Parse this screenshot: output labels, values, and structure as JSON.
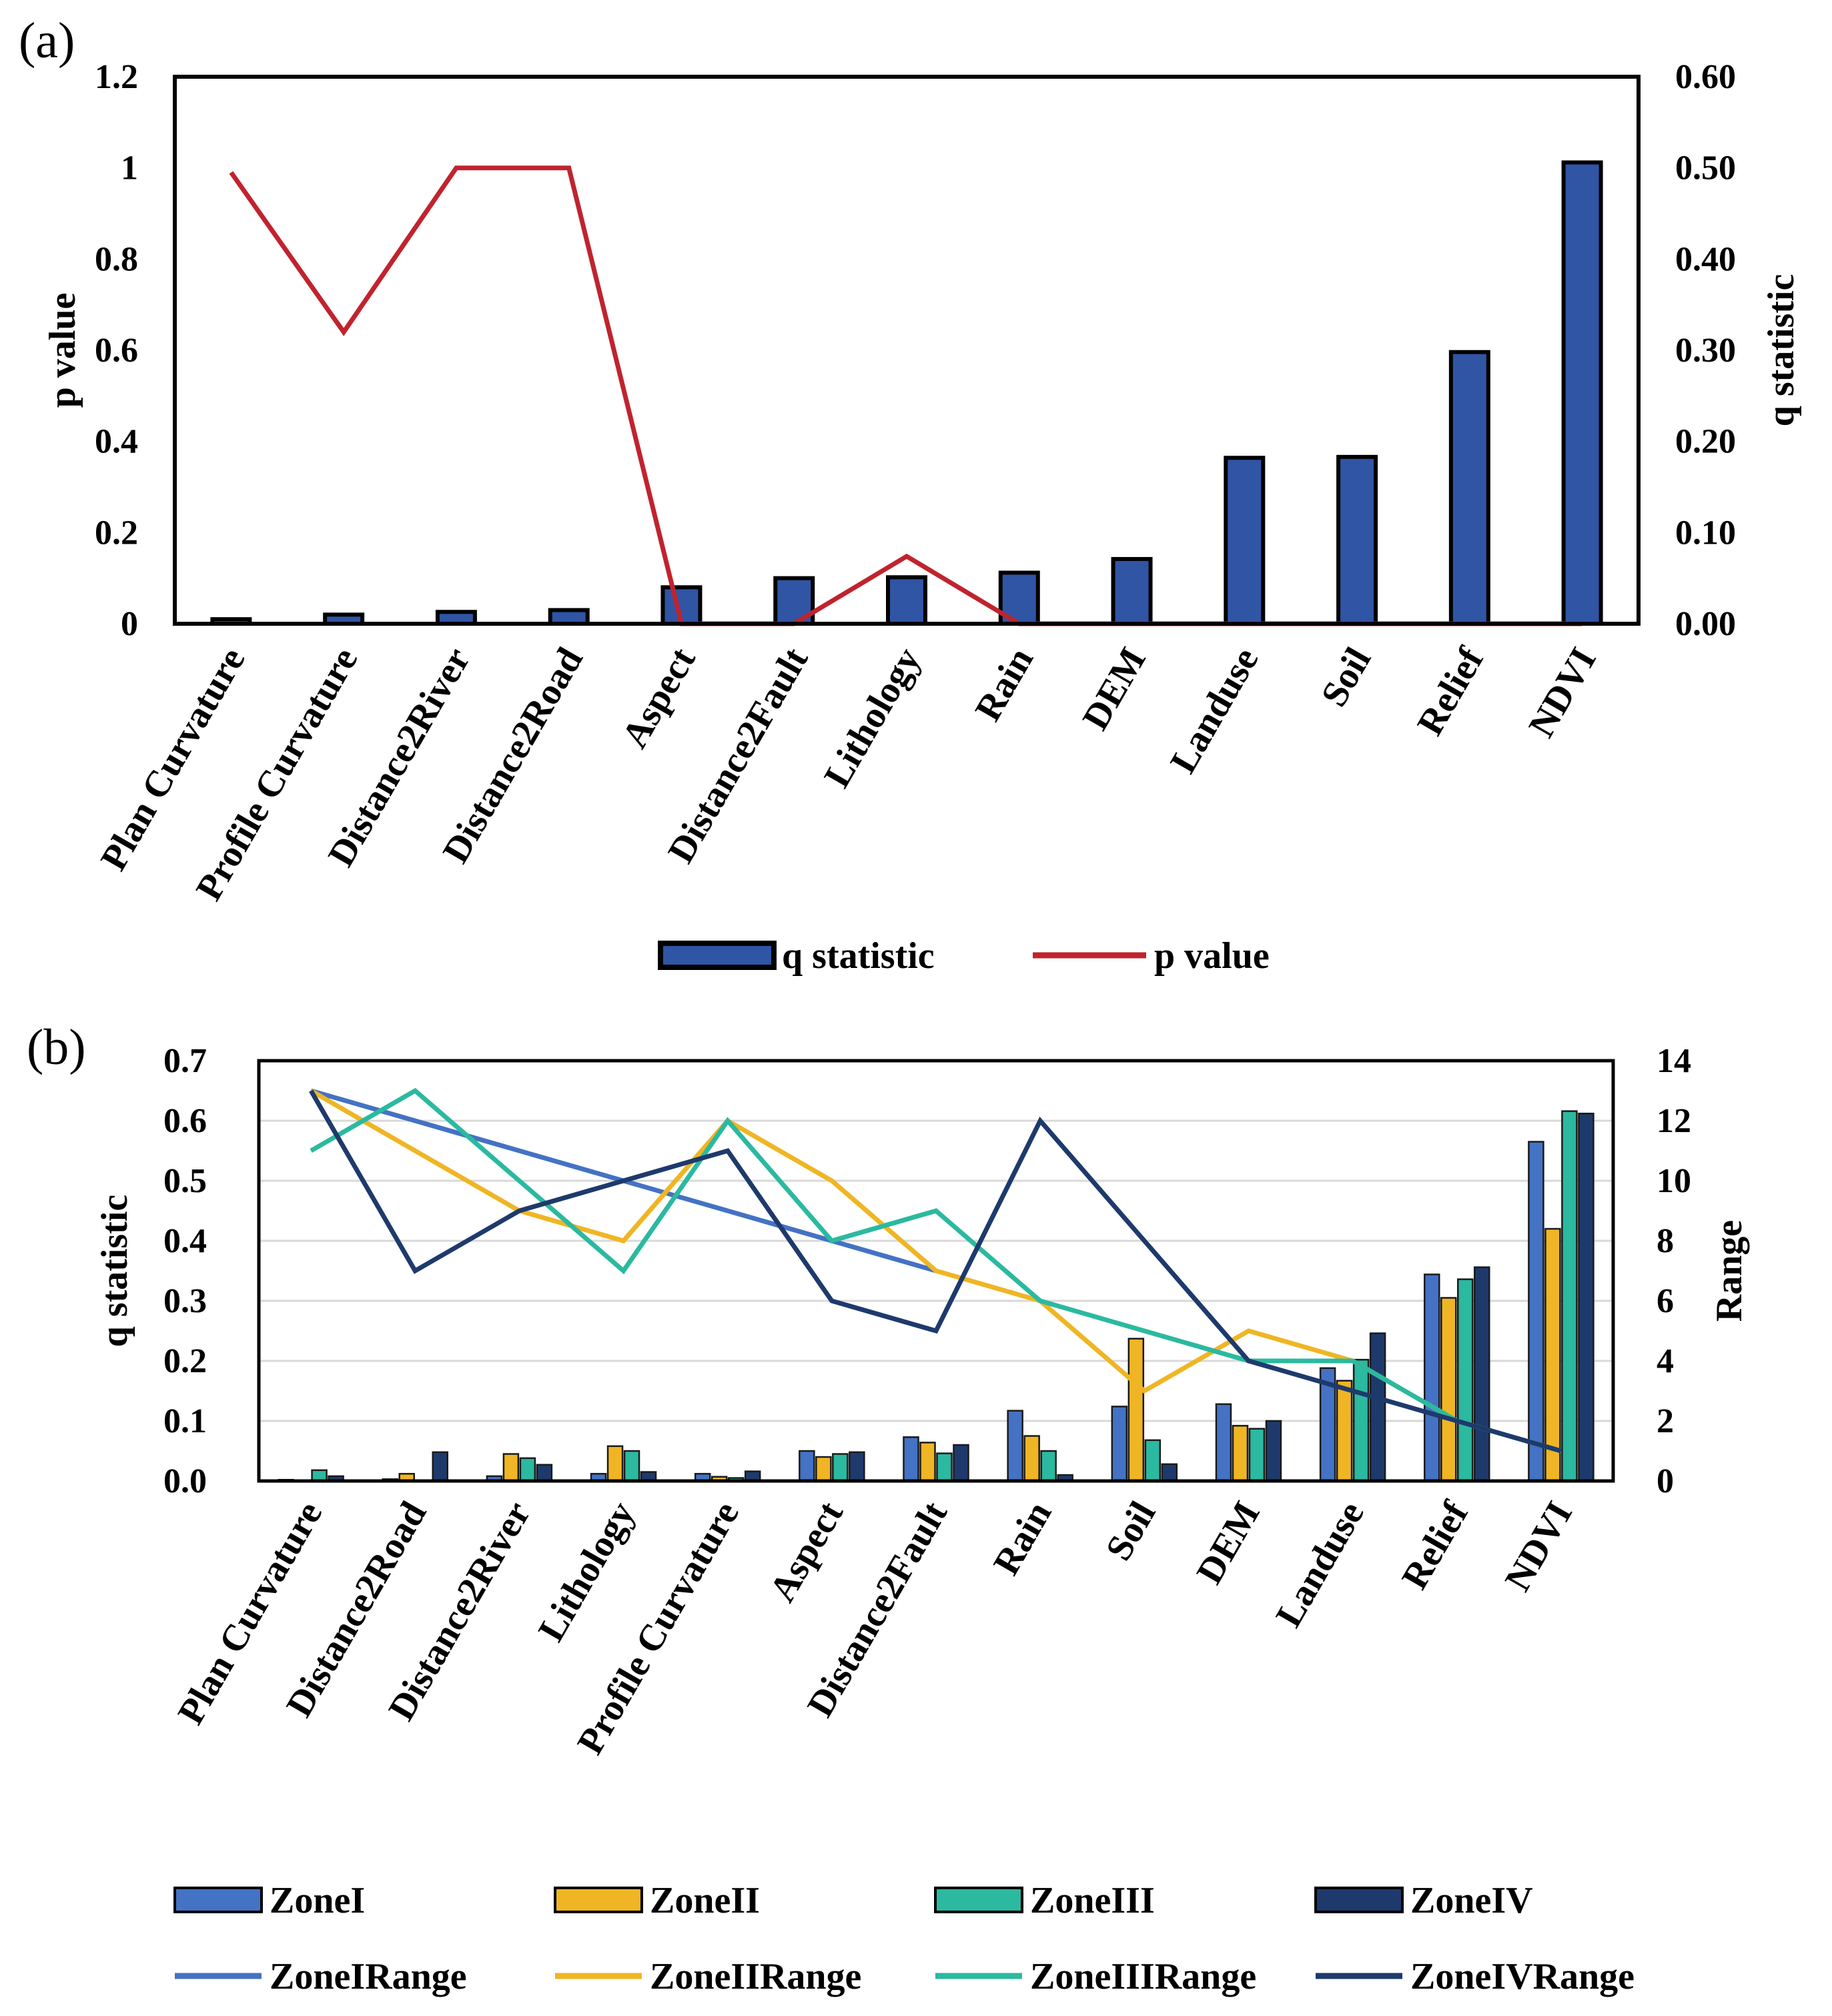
{
  "chart_data": [
    {
      "panel": "(a)",
      "type": "bar",
      "categories": [
        "Plan Curvature",
        "Profile Curvature",
        "Distance2River",
        "Distance2Road",
        "Aspect",
        "Distance2Fault",
        "Lithology",
        "Rain",
        "DEM",
        "Landuse",
        "Soil",
        "Relief",
        "NDVI"
      ],
      "series": [
        {
          "name": "q statistic",
          "type": "bar",
          "axis": "right",
          "color": "#2f55a4",
          "values": [
            0.005,
            0.01,
            0.013,
            0.015,
            0.04,
            0.05,
            0.051,
            0.056,
            0.071,
            0.182,
            0.183,
            0.298,
            0.506
          ]
        },
        {
          "name": "p value",
          "type": "line",
          "axis": "left",
          "color": "#c0232e",
          "values": [
            0.99,
            0.64,
            1.0,
            1.0,
            0.0,
            0.0,
            0.148,
            0.0,
            0.0,
            0.0,
            0.0,
            0.0,
            0.0
          ]
        }
      ],
      "ylabel_left": "p value",
      "ylabel_right": "q statistic",
      "ylim_left": [
        0,
        1.2
      ],
      "ylim_right": [
        0,
        0.6
      ],
      "left_ticks": [
        "0",
        "0.2",
        "0.4",
        "0.6",
        "0.8",
        "1",
        "1.2"
      ],
      "right_ticks": [
        "0.00",
        "0.10",
        "0.20",
        "0.30",
        "0.40",
        "0.50",
        "0.60"
      ],
      "legend_position": "bottom"
    },
    {
      "panel": "(b)",
      "type": "bar",
      "categories": [
        "Plan Curvature",
        "Distance2Road",
        "Distance2River",
        "Lithology",
        "Profile Curvature",
        "Aspect",
        "Distance2Fault",
        "Rain",
        "Soil",
        "DEM",
        "Landuse",
        "Relief",
        "NDVI"
      ],
      "series": [
        {
          "name": "ZoneI",
          "type": "bar",
          "axis": "left",
          "color": "#4472c4",
          "values": [
            0.002,
            0.003,
            0.008,
            0.012,
            0.012,
            0.05,
            0.073,
            0.117,
            0.124,
            0.128,
            0.188,
            0.344,
            0.565
          ]
        },
        {
          "name": "ZoneII",
          "type": "bar",
          "axis": "left",
          "color": "#efb524",
          "values": [
            0.001,
            0.012,
            0.045,
            0.058,
            0.007,
            0.04,
            0.064,
            0.075,
            0.237,
            0.092,
            0.167,
            0.305,
            0.42
          ]
        },
        {
          "name": "ZoneIII",
          "type": "bar",
          "axis": "left",
          "color": "#2bb9a0",
          "values": [
            0.018,
            0.001,
            0.038,
            0.05,
            0.005,
            0.045,
            0.046,
            0.05,
            0.068,
            0.087,
            0.202,
            0.336,
            0.616
          ]
        },
        {
          "name": "ZoneIV",
          "type": "bar",
          "axis": "left",
          "color": "#1e3a6c",
          "values": [
            0.008,
            0.048,
            0.027,
            0.015,
            0.016,
            0.048,
            0.06,
            0.01,
            0.028,
            0.1,
            0.246,
            0.356,
            0.612
          ]
        },
        {
          "name": "ZoneIRange",
          "type": "line",
          "axis": "right",
          "color": "#4472c4",
          "values": [
            13,
            12,
            11,
            10,
            9,
            8,
            7,
            null,
            null,
            null,
            null,
            null,
            null
          ]
        },
        {
          "name": "ZoneIIRange",
          "type": "line",
          "axis": "right",
          "color": "#efb524",
          "values": [
            13,
            11,
            9,
            8,
            12,
            10,
            7,
            6,
            3,
            5,
            4,
            2,
            1
          ]
        },
        {
          "name": "ZoneIIIRange",
          "type": "line",
          "axis": "right",
          "color": "#2bb9a0",
          "values": [
            11,
            13,
            10,
            7,
            12,
            8,
            9,
            6,
            5,
            4,
            4,
            2,
            1
          ]
        },
        {
          "name": "ZoneIVRange",
          "type": "line",
          "axis": "right",
          "color": "#1e3a6c",
          "values": [
            13,
            7,
            9,
            10,
            11,
            6,
            5,
            12,
            8,
            4,
            3,
            2,
            1
          ]
        }
      ],
      "ylabel_left": "q statistic",
      "ylabel_right": "Range",
      "ylim_left": [
        0,
        0.7
      ],
      "ylim_right": [
        0,
        14
      ],
      "left_ticks": [
        "0.0",
        "0.1",
        "0.2",
        "0.3",
        "0.4",
        "0.5",
        "0.6",
        "0.7"
      ],
      "right_ticks": [
        "0",
        "2",
        "4",
        "6",
        "8",
        "10",
        "12",
        "14"
      ],
      "grid": true,
      "legend_position": "bottom"
    }
  ]
}
